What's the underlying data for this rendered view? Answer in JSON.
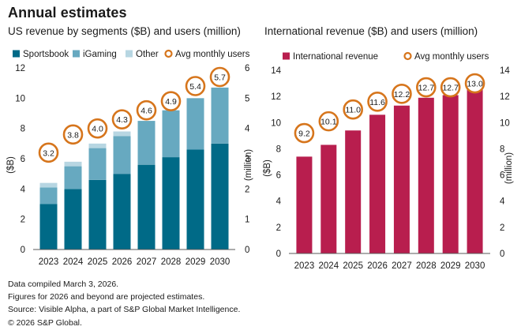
{
  "title": "Annual estimates",
  "colors": {
    "sportsbook": "#006a87",
    "igaming": "#67a9c0",
    "other": "#b7d6e2",
    "international": "#b81e4e",
    "users_ring": "#d6751c",
    "axis": "#5a5a5a"
  },
  "chart_data": [
    {
      "type": "bar",
      "stacked": true,
      "title": "US revenue by segments ($B) and users (million)",
      "categories": [
        "2023",
        "2024",
        "2025",
        "2026",
        "2027",
        "2028",
        "2029",
        "2030"
      ],
      "series": [
        {
          "name": "Sportsbook",
          "values": [
            3.0,
            4.0,
            4.6,
            5.0,
            5.6,
            6.1,
            6.6,
            7.0
          ]
        },
        {
          "name": "iGaming",
          "values": [
            1.1,
            1.5,
            2.1,
            2.5,
            2.9,
            3.1,
            3.4,
            3.7
          ]
        },
        {
          "name": "Other",
          "values": [
            0.3,
            0.3,
            0.3,
            0.3,
            0.0,
            0.0,
            0.0,
            0.0
          ]
        }
      ],
      "users": {
        "name": "Avg monthly users",
        "values": [
          3.2,
          3.8,
          4.0,
          4.3,
          4.6,
          4.9,
          5.4,
          5.7
        ],
        "labels": [
          "3.2",
          "3.8",
          "4.0",
          "4.3",
          "4.6",
          "4.9",
          "5.4",
          "5.7"
        ]
      },
      "ylabel": "($B)",
      "y2label": "(million)",
      "ylim": [
        0,
        12
      ],
      "yticks": [
        0,
        2,
        4,
        6,
        8,
        10,
        12
      ],
      "y2lim": [
        0,
        6
      ],
      "y2ticks": [
        0,
        1,
        2,
        3,
        4,
        5,
        6
      ],
      "legend": [
        "Sportsbook",
        "iGaming",
        "Other",
        "Avg monthly users"
      ]
    },
    {
      "type": "bar",
      "title": "International revenue ($B) and users (million)",
      "categories": [
        "2023",
        "2024",
        "2025",
        "2026",
        "2027",
        "2028",
        "2029",
        "2030"
      ],
      "series": [
        {
          "name": "International revenue",
          "values": [
            7.4,
            8.3,
            9.4,
            10.6,
            11.3,
            11.9,
            12.1,
            12.7
          ]
        }
      ],
      "users": {
        "name": "Avg monthly users",
        "values": [
          9.2,
          10.1,
          11.0,
          11.6,
          12.2,
          12.7,
          12.7,
          13.0
        ],
        "labels": [
          "9.2",
          "10.1",
          "11.0",
          "11.6",
          "12.2",
          "12.7",
          "12.7",
          "13.0"
        ]
      },
      "ylabel": "($B)",
      "y2label": "(million)",
      "ylim": [
        0,
        14
      ],
      "yticks": [
        0,
        2,
        4,
        6,
        8,
        10,
        12,
        14
      ],
      "y2lim": [
        0,
        14
      ],
      "y2ticks": [
        0,
        2,
        4,
        6,
        8,
        10,
        12,
        14
      ],
      "legend": [
        "International revenue",
        "Avg monthly users"
      ]
    }
  ],
  "notes": [
    "Data compiled March 3, 2026.",
    "Figures for 2026 and beyond are projected estimates.",
    "Source: Visible Alpha, a part of S&P Global Market Intelligence.",
    "© 2026 S&P Global."
  ]
}
